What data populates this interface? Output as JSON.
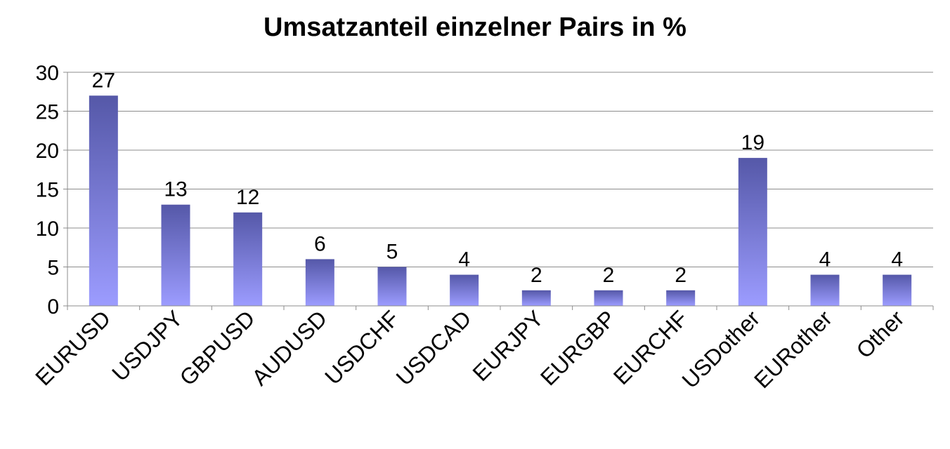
{
  "chart_data": {
    "type": "bar",
    "title": "Umsatzanteil einzelner Pairs in %",
    "xlabel": "",
    "ylabel": "",
    "categories": [
      "EURUSD",
      "USDJPY",
      "GBPUSD",
      "AUDUSD",
      "USDCHF",
      "USDCAD",
      "EURJPY",
      "EURGBP",
      "EURCHF",
      "USDother",
      "EURother",
      "Other"
    ],
    "values": [
      27,
      13,
      12,
      6,
      5,
      4,
      2,
      2,
      2,
      19,
      4,
      4
    ],
    "data_labels": [
      "27",
      "13",
      "12",
      "6",
      "5",
      "4",
      "2",
      "2",
      "2",
      "19",
      "4",
      "4"
    ],
    "ylim": [
      0,
      30
    ],
    "yticks": [
      0,
      5,
      10,
      15,
      20,
      25,
      30
    ],
    "grid": true,
    "legend": "none",
    "colors": {
      "bar_top": "#5558a8",
      "bar_bottom": "#9c9cff",
      "grid": "#8c8c8c"
    }
  }
}
